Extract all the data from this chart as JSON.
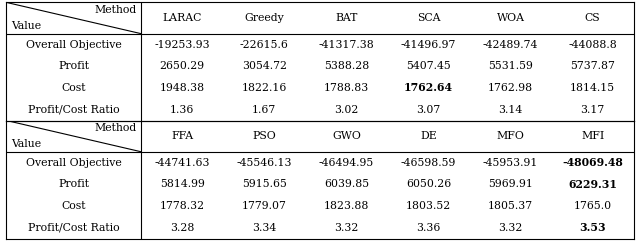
{
  "table1_methods": [
    "LARAC",
    "Greedy",
    "BAT",
    "SCA",
    "WOA",
    "CS"
  ],
  "table1_rows": {
    "Overall Objective": [
      "-19253.93",
      "-22615.6",
      "-41317.38",
      "-41496.97",
      "-42489.74",
      "-44088.8"
    ],
    "Profit": [
      "2650.29",
      "3054.72",
      "5388.28",
      "5407.45",
      "5531.59",
      "5737.87"
    ],
    "Cost": [
      "1948.38",
      "1822.16",
      "1788.83",
      "1762.64",
      "1762.98",
      "1814.15"
    ],
    "Profit/Cost Ratio": [
      "1.36",
      "1.67",
      "3.02",
      "3.07",
      "3.14",
      "3.17"
    ]
  },
  "table1_bold": {
    "Overall Objective": [],
    "Profit": [],
    "Cost": [
      3
    ],
    "Profit/Cost Ratio": []
  },
  "table2_methods": [
    "FFA",
    "PSO",
    "GWO",
    "DE",
    "MFO",
    "MFI"
  ],
  "table2_rows": {
    "Overall Objective": [
      "-44741.63",
      "-45546.13",
      "-46494.95",
      "-46598.59",
      "-45953.91",
      "-48069.48"
    ],
    "Profit": [
      "5814.99",
      "5915.65",
      "6039.85",
      "6050.26",
      "5969.91",
      "6229.31"
    ],
    "Cost": [
      "1778.32",
      "1779.07",
      "1823.88",
      "1803.52",
      "1805.37",
      "1765.0"
    ],
    "Profit/Cost Ratio": [
      "3.28",
      "3.34",
      "3.32",
      "3.36",
      "3.32",
      "3.53"
    ]
  },
  "table2_bold": {
    "Overall Objective": [
      5
    ],
    "Profit": [
      5
    ],
    "Cost": [],
    "Profit/Cost Ratio": [
      5
    ]
  },
  "row_labels": [
    "Overall Objective",
    "Profit",
    "Cost",
    "Profit/Cost Ratio"
  ],
  "bg_color": "#ffffff",
  "font_size": 7.8,
  "fig_width": 6.4,
  "fig_height": 2.41
}
